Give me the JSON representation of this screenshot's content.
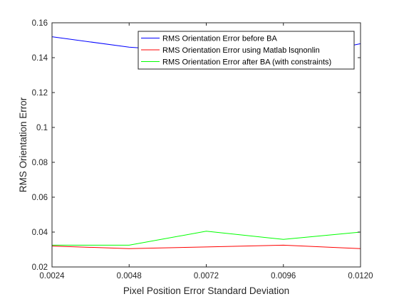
{
  "chart_data": {
    "type": "line",
    "x": [
      0.0024,
      0.0048,
      0.0072,
      0.0096,
      0.012
    ],
    "x_tick_labels": [
      "0.0024",
      "0.0048",
      "0.0072",
      "0.0096",
      "0.0120"
    ],
    "y_tick_labels": [
      "0.02",
      "0.04",
      "0.06",
      "0.08",
      "0.1",
      "0.12",
      "0.14",
      "0.16"
    ],
    "y_ticks": [
      0.02,
      0.04,
      0.06,
      0.08,
      0.1,
      0.12,
      0.14,
      0.16
    ],
    "xlim": [
      0.0024,
      0.012
    ],
    "ylim": [
      0.02,
      0.16
    ],
    "xlabel": "Pixel Position Error Standard Deviation",
    "ylabel": "RMS Orientation Error",
    "title": "",
    "grid": false,
    "legend_position": "top-right",
    "series": [
      {
        "name": "RMS Orientation Error before BA",
        "color": "#0000ff",
        "values": [
          0.152,
          0.146,
          0.143,
          0.139,
          0.148
        ]
      },
      {
        "name": "RMS Orientation Error using Matlab lsqnonlin",
        "color": "#ff0000",
        "values": [
          0.032,
          0.0305,
          0.0315,
          0.0325,
          0.0305
        ]
      },
      {
        "name": "RMS Orientation Error after BA (with constraints)",
        "color": "#00ff00",
        "values": [
          0.0325,
          0.0325,
          0.0405,
          0.0358,
          0.04
        ]
      }
    ]
  }
}
